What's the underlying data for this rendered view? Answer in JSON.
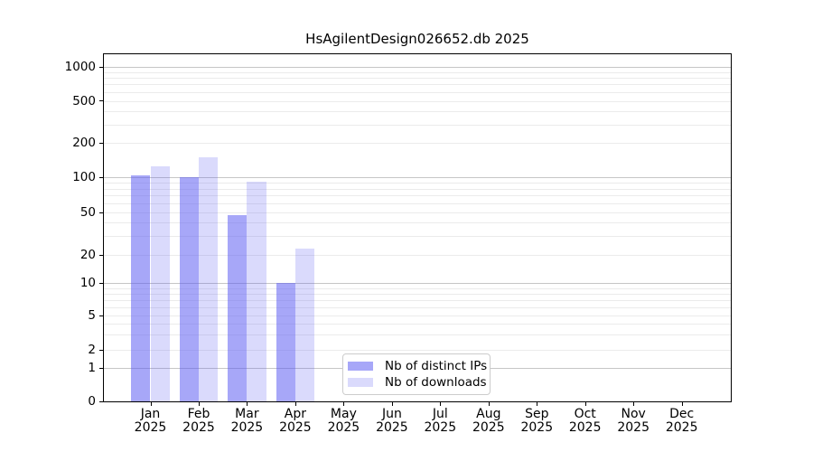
{
  "title": "HsAgilentDesign026652.db 2025",
  "chart_data": {
    "type": "bar",
    "title": "HsAgilentDesign026652.db 2025",
    "categories": [
      "Jan",
      "Feb",
      "Mar",
      "Apr",
      "May",
      "Jun",
      "Jul",
      "Aug",
      "Sep",
      "Oct",
      "Nov",
      "Dec"
    ],
    "x_tick_year_line": "2025",
    "series": [
      {
        "name": "Nb of distinct IPs",
        "values": [
          105,
          100,
          47,
          10,
          0,
          0,
          0,
          0,
          0,
          0,
          0,
          0
        ],
        "color": "#a6a6f8",
        "fill": "rgba(88,88,242,0.53)"
      },
      {
        "name": "Nb of downloads",
        "values": [
          125,
          150,
          92,
          23,
          0,
          0,
          0,
          0,
          0,
          0,
          0,
          0
        ],
        "color": "#dadafb",
        "fill": "rgba(88,88,242,0.22)"
      }
    ],
    "y_ticks": [
      0,
      1,
      2,
      5,
      10,
      20,
      50,
      100,
      200,
      500,
      1000
    ],
    "y_scale": "symlog",
    "ylim": [
      0,
      1400
    ],
    "xlabel": "",
    "ylabel": "",
    "grid": "horizontal",
    "legend_position": "lower-center-inside"
  },
  "colors": {
    "bar_distinct_ips": "#a6a6f8",
    "bar_downloads": "#dadafb",
    "grid_major": "#c6c6c6",
    "grid_minor": "#ebebeb",
    "spine": "#000000",
    "text": "#000000",
    "legend_border": "#cccccc",
    "background": "#ffffff"
  }
}
